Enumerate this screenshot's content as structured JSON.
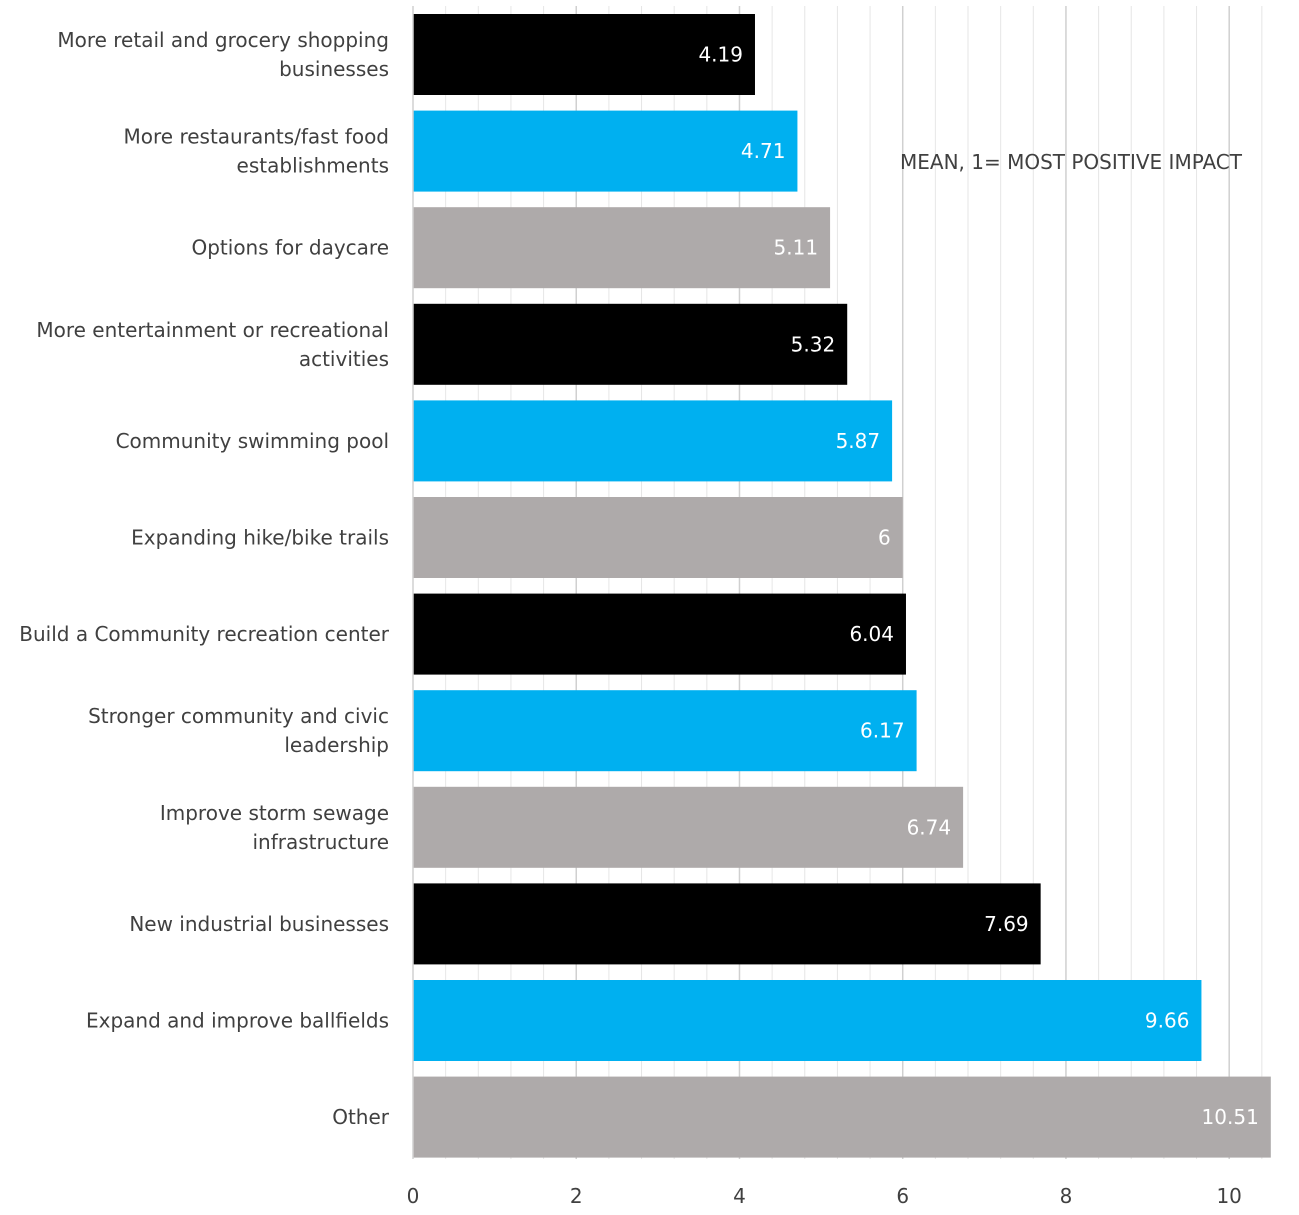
{
  "chart_data": {
    "type": "bar",
    "orientation": "horizontal",
    "categories": [
      "More retail and grocery shopping businesses",
      "More restaurants/fast food establishments",
      "Options for daycare",
      "More entertainment or recreational activities",
      "Community swimming pool",
      "Expanding hike/bike trails",
      "Build a Community recreation center",
      "Stronger community and civic leadership",
      "Improve storm sewage infrastructure",
      "New industrial businesses",
      "Expand and improve ballfields",
      "Other"
    ],
    "category_lines": [
      [
        "More retail and grocery shopping",
        "businesses"
      ],
      [
        "More restaurants/fast food",
        "establishments"
      ],
      [
        "Options for daycare"
      ],
      [
        "More entertainment or recreational",
        "activities"
      ],
      [
        "Community swimming pool"
      ],
      [
        "Expanding hike/bike trails"
      ],
      [
        "Build a Community recreation center"
      ],
      [
        "Stronger community and civic",
        "leadership"
      ],
      [
        "Improve storm sewage",
        "infrastructure"
      ],
      [
        "New industrial businesses"
      ],
      [
        "Expand and improve ballfields"
      ],
      [
        "Other"
      ]
    ],
    "values": [
      4.19,
      4.71,
      5.11,
      5.32,
      5.87,
      6,
      6.04,
      6.17,
      6.74,
      7.69,
      9.66,
      10.51
    ],
    "value_labels": [
      "4.19",
      "4.71",
      "5.11",
      "5.32",
      "5.87",
      "6",
      "6.04",
      "6.17",
      "6.74",
      "7.69",
      "9.66",
      "10.51"
    ],
    "bar_colors": [
      "#000000",
      "#00b0f0",
      "#aeaaaa",
      "#000000",
      "#00b0f0",
      "#aeaaaa",
      "#000000",
      "#00b0f0",
      "#aeaaaa",
      "#000000",
      "#00b0f0",
      "#aeaaaa"
    ],
    "value_label_colors": [
      "#ffffff",
      "#ffffff",
      "#ffffff",
      "#ffffff",
      "#ffffff",
      "#ffffff",
      "#ffffff",
      "#ffffff",
      "#ffffff",
      "#ffffff",
      "#ffffff",
      "#ffffff"
    ],
    "xlim": [
      0,
      10.5
    ],
    "x_ticks": [
      0,
      2,
      4,
      6,
      8,
      10
    ],
    "x_tick_labels": [
      "0",
      "2",
      "4",
      "6",
      "8",
      "10"
    ],
    "minor_grid_step": 0.4,
    "grid": true,
    "annotation": "MEAN, 1= MOST POSITIVE IMPACT",
    "title": "",
    "xlabel": "",
    "ylabel": ""
  }
}
